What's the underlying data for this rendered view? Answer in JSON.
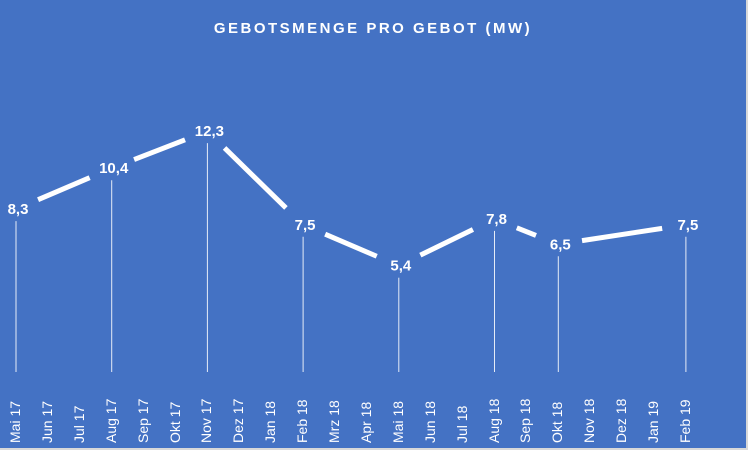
{
  "chart_data": {
    "type": "line",
    "title": "GEBOTSMENGE PRO GEBOT (MW)",
    "xlabel": "",
    "ylabel": "",
    "categories": [
      "Mai 17",
      "Jun 17",
      "Jul 17",
      "Aug 17",
      "Sep 17",
      "Okt 17",
      "Nov 17",
      "Dez 17",
      "Jan 18",
      "Feb 18",
      "Mrz 18",
      "Apr 18",
      "Mai 18",
      "Jun 18",
      "Jul 18",
      "Aug 18",
      "Sep 18",
      "Okt 18",
      "Nov 18",
      "Dez 18",
      "Jan 19",
      "Feb 19"
    ],
    "points": [
      {
        "category": "Mai 17",
        "value": 8.3,
        "label": "8,3"
      },
      {
        "category": "Aug 17",
        "value": 10.4,
        "label": "10,4"
      },
      {
        "category": "Nov 17",
        "value": 12.3,
        "label": "12,3"
      },
      {
        "category": "Feb 18",
        "value": 7.5,
        "label": "7,5"
      },
      {
        "category": "Mai 18",
        "value": 5.4,
        "label": "5,4"
      },
      {
        "category": "Aug 18",
        "value": 7.8,
        "label": "7,8"
      },
      {
        "category": "Okt 18",
        "value": 6.5,
        "label": "6,5"
      },
      {
        "category": "Feb 19",
        "value": 7.5,
        "label": "7,5"
      }
    ],
    "grid": false,
    "legend": "none",
    "colors": {
      "background": "#4472c4",
      "line": "#ffffff",
      "text": "#ffffff"
    }
  }
}
